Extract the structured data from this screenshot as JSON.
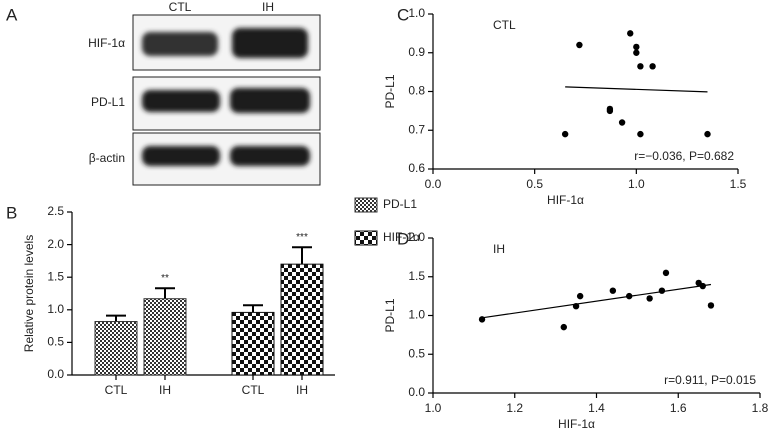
{
  "blot": {
    "label": "A",
    "columns": [
      "CTL",
      "IH"
    ],
    "rows": [
      "HIF-1α",
      "PD-L1",
      "β-actin"
    ]
  },
  "chart_data": [
    {
      "type": "bar",
      "label": "B",
      "ylabel": "Relative protein levels",
      "categories": [
        "CTL",
        "IH"
      ],
      "series": [
        {
          "name": "PD-L1",
          "color": "#333333",
          "values": [
            0.82,
            1.17
          ],
          "errors": [
            0.09,
            0.16
          ],
          "significance": [
            null,
            "**"
          ]
        },
        {
          "name": "HIF-1α",
          "color": "#111111",
          "values": [
            0.96,
            1.7
          ],
          "errors": [
            0.11,
            0.26
          ],
          "significance": [
            null,
            "***"
          ]
        }
      ],
      "ylim": [
        0,
        2.5
      ],
      "yticks": [
        {
          "value": 0,
          "label": "0.0"
        },
        0.5,
        {
          "value": 1,
          "label": "1.0"
        },
        1.5,
        {
          "value": 2,
          "label": "2.0"
        },
        2.5
      ]
    },
    {
      "type": "scatter",
      "label": "C",
      "title": "CTL",
      "xlabel": "HIF-1α",
      "ylabel": "PD-L1",
      "color": "#000000",
      "x": [
        0.65,
        0.72,
        0.87,
        0.87,
        0.93,
        0.97,
        1.0,
        1.0,
        1.02,
        1.08,
        1.02,
        1.35
      ],
      "y": [
        0.69,
        0.92,
        0.75,
        0.755,
        0.72,
        0.95,
        0.915,
        0.9,
        0.865,
        0.865,
        0.69,
        0.69
      ],
      "fit": {
        "x": [
          0.65,
          1.35
        ],
        "y": [
          0.812,
          0.799
        ]
      },
      "annotation": "r=−0.036, P=0.682",
      "xlim": [
        0,
        1.5
      ],
      "xticks": [
        {
          "value": 0,
          "label": "0.0"
        },
        0.5,
        {
          "value": 1,
          "label": "1.0"
        },
        1.5
      ],
      "ylim": [
        0.6,
        1.0
      ],
      "yticks": [
        0.6,
        0.7,
        0.8,
        0.9,
        {
          "value": 1,
          "label": "1.0"
        }
      ]
    },
    {
      "type": "scatter",
      "label": "D",
      "title": "IH",
      "xlabel": "HIF-1α",
      "ylabel": "PD-L1",
      "color": "#000000",
      "x": [
        1.12,
        1.32,
        1.35,
        1.36,
        1.44,
        1.48,
        1.53,
        1.56,
        1.57,
        1.65,
        1.66,
        1.68
      ],
      "y": [
        0.95,
        0.85,
        1.12,
        1.25,
        1.32,
        1.25,
        1.22,
        1.32,
        1.55,
        1.42,
        1.38,
        1.13
      ],
      "fit": {
        "x": [
          1.12,
          1.68
        ],
        "y": [
          0.97,
          1.4
        ]
      },
      "annotation": "r=0.911, P=0.015",
      "xlim": [
        1.0,
        1.8
      ],
      "xticks": [
        {
          "value": 1,
          "label": "1.0"
        },
        1.2,
        1.4,
        1.6,
        1.8
      ],
      "ylim": [
        0,
        2.0
      ],
      "yticks": [
        {
          "value": 0,
          "label": "0.0"
        },
        0.5,
        {
          "value": 1,
          "label": "1.0"
        },
        1.5,
        {
          "value": 2,
          "label": "2.0"
        }
      ]
    }
  ]
}
